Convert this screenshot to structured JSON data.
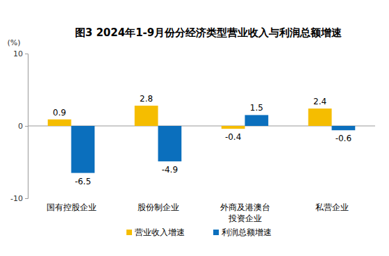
{
  "chart_data": {
    "type": "bar",
    "title": "图3 2024年1-9月份分经济类型营业收入与利润总额增速",
    "y_label": "(%)",
    "categories": [
      "国有控股企业",
      "股份制企业",
      "外商及港澳台\n投资企业",
      "私营企业"
    ],
    "series": [
      {
        "name": "营业收入增速",
        "color": "#f5bd00",
        "values": [
          0.9,
          2.8,
          -0.4,
          2.4
        ]
      },
      {
        "name": "利润总额增速",
        "color": "#0b6fbd",
        "values": [
          -6.5,
          -4.9,
          1.5,
          -0.6
        ]
      }
    ],
    "ylim": [
      -10,
      10
    ],
    "yticks": [
      -10,
      0,
      10
    ],
    "grid": false,
    "data_labels": true,
    "legend": "bottom"
  }
}
